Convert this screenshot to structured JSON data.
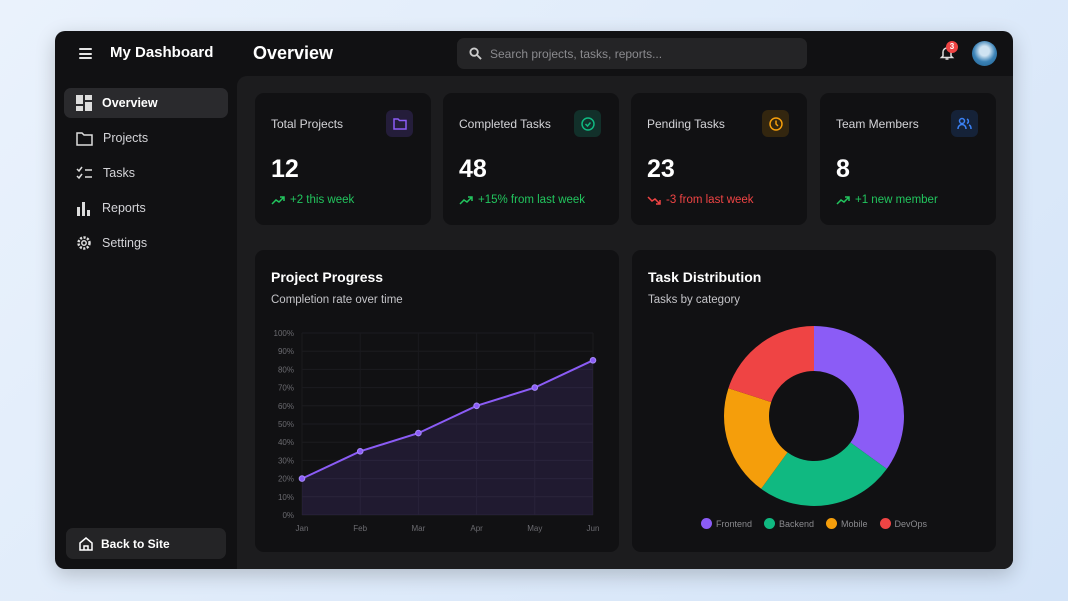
{
  "header": {
    "brand": "My Dashboard",
    "page_title": "Overview",
    "search_placeholder": "Search projects, tasks, reports...",
    "notification_count": "3"
  },
  "sidebar": {
    "items": [
      {
        "label": "Overview",
        "icon": "dashboard-icon",
        "active": true
      },
      {
        "label": "Projects",
        "icon": "folder-icon"
      },
      {
        "label": "Tasks",
        "icon": "checklist-icon"
      },
      {
        "label": "Reports",
        "icon": "bar-chart-icon"
      },
      {
        "label": "Settings",
        "icon": "gear-icon"
      }
    ],
    "back_label": "Back to Site"
  },
  "stats": [
    {
      "label": "Total Projects",
      "value": "12",
      "change": "+2 this week",
      "trend": "up",
      "icon": "folder-icon",
      "color": "#8b5cf6"
    },
    {
      "label": "Completed Tasks",
      "value": "48",
      "change": "+15% from last week",
      "trend": "up",
      "icon": "check-circle-icon",
      "color": "#10b981"
    },
    {
      "label": "Pending Tasks",
      "value": "23",
      "change": "-3 from last week",
      "trend": "down",
      "icon": "clock-icon",
      "color": "#f59e0b"
    },
    {
      "label": "Team Members",
      "value": "8",
      "change": "+1 new member",
      "trend": "up",
      "icon": "users-icon",
      "color": "#3b82f6"
    }
  ],
  "colors": {
    "up": "#22c55e",
    "down": "#ef4444"
  },
  "chart_data": [
    {
      "type": "area",
      "title": "Project Progress",
      "subtitle": "Completion rate over time",
      "categories": [
        "Jan",
        "Feb",
        "Mar",
        "Apr",
        "May",
        "Jun"
      ],
      "values": [
        20,
        35,
        45,
        60,
        70,
        85
      ],
      "ylim": [
        0,
        100
      ],
      "yticks": [
        "0%",
        "10%",
        "20%",
        "30%",
        "40%",
        "50%",
        "60%",
        "70%",
        "80%",
        "90%",
        "100%"
      ],
      "color": "#8b5cf6",
      "grid": true
    },
    {
      "type": "pie",
      "title": "Task Distribution",
      "subtitle": "Tasks by category",
      "categories": [
        "Frontend",
        "Backend",
        "Mobile",
        "DevOps"
      ],
      "values": [
        35,
        25,
        20,
        20
      ],
      "colors": [
        "#8b5cf6",
        "#10b981",
        "#f59e0b",
        "#ef4444"
      ],
      "legend": "bottom"
    }
  ]
}
